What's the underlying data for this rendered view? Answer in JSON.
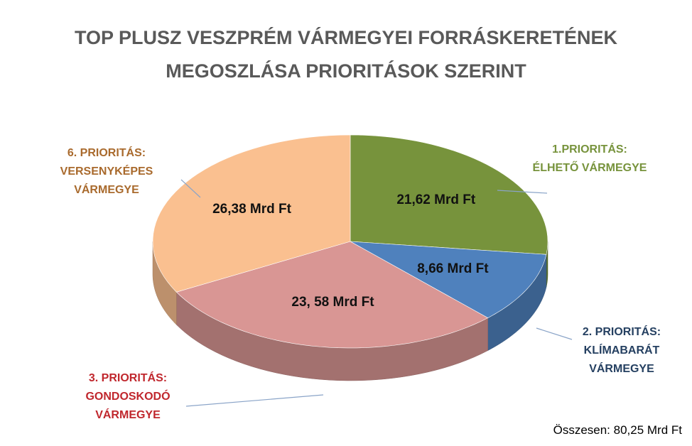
{
  "chart_data": {
    "type": "pie",
    "title": "TOP PLUSZ VESZPRÉM VÁRMEGYEI FORRÁSKERETÉNEK MEGOSZLÁSA PRIORITÁSOK SZERINT",
    "categories": [
      "1.PRIORITÁS: ÉLHETŐ VÁRMEGYE",
      "2. PRIORITÁS: KLÍMABARÁT VÁRMEGYE",
      "3. PRIORITÁS: GONDOSKODÓ VÁRMEGYE",
      "6. PRIORITÁS: VERSENYKÉPES VÁRMEGYE"
    ],
    "values": [
      21.62,
      8.66,
      23.58,
      26.38
    ],
    "value_labels": [
      "21,62 Mrd Ft",
      "8,66 Mrd Ft",
      "23, 58 Mrd Ft",
      "26,38 Mrd Ft"
    ],
    "colors": [
      "#77933c",
      "#4f81bd",
      "#d99694",
      "#fac090"
    ],
    "total_label": "Összesen: 80,25 Mrd Ft"
  }
}
